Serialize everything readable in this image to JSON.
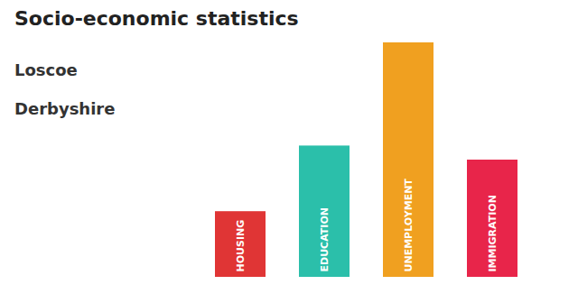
{
  "chart_data": {
    "type": "bar",
    "title": "Socio-economic statistics",
    "subtitle": [
      "Loscoe",
      "Derbyshire"
    ],
    "categories": [
      "HOUSING",
      "EDUCATION",
      "UNEMPLOYMENT",
      "IMMIGRATION"
    ],
    "values": [
      0.28,
      0.56,
      1.0,
      0.5
    ],
    "colors": [
      "#e03535",
      "#2bbfaa",
      "#f0a020",
      "#e8254a"
    ],
    "ylim": [
      0,
      1
    ],
    "grid": false,
    "tick_labels": false
  }
}
